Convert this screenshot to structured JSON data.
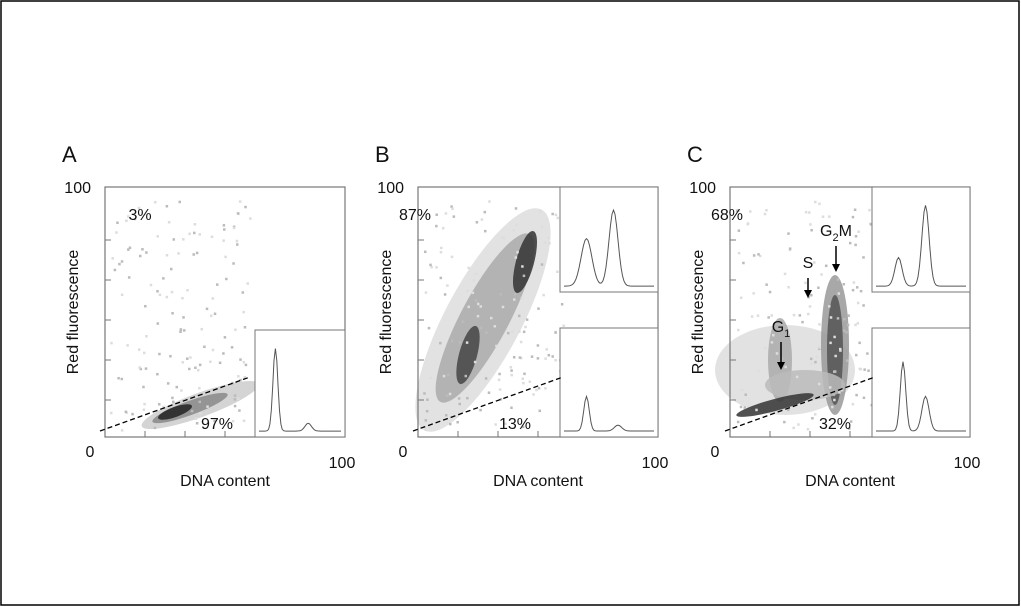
{
  "panels": [
    {
      "label": "A",
      "y_axis_label": "Red fluorescence",
      "x_axis_label": "DNA content",
      "y_max_label": "100",
      "origin_label": "0",
      "x_max_label": "100",
      "upper_percent": "3%",
      "lower_percent": "97%"
    },
    {
      "label": "B",
      "y_axis_label": "Red fluorescence",
      "x_axis_label": "DNA content",
      "y_max_label": "100",
      "origin_label": "0",
      "x_max_label": "100",
      "upper_percent": "87%",
      "lower_percent": "13%"
    },
    {
      "label": "C",
      "y_axis_label": "Red fluorescence",
      "x_axis_label": "DNA content",
      "y_max_label": "100",
      "origin_label": "0",
      "x_max_label": "100",
      "upper_percent": "68%",
      "lower_percent": "32%"
    }
  ],
  "phase_labels": [
    {
      "main": "G",
      "sub": "1"
    },
    {
      "main": "S"
    },
    {
      "main": "G",
      "sub": "2",
      "suffix": "M"
    }
  ]
}
